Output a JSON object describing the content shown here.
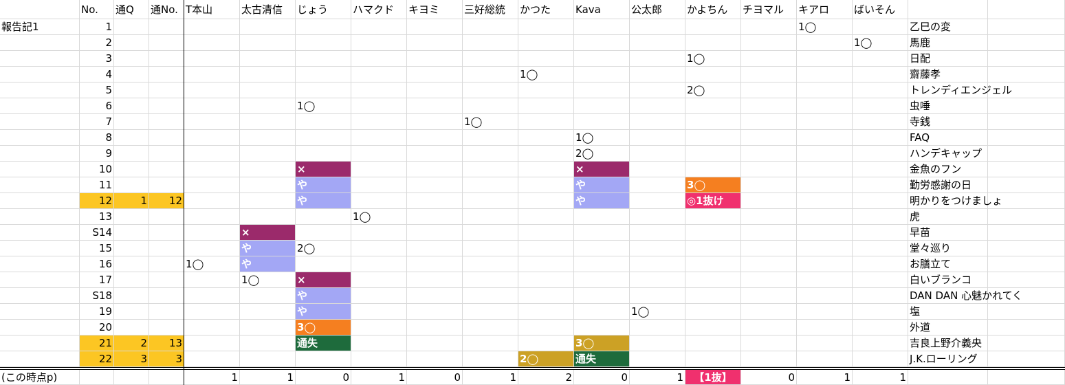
{
  "palette": {
    "x_bg": "#9b2a6b",
    "ya_bg": "#a3a7f5",
    "orange_bg": "#f57f20",
    "pink_bg": "#f0306e",
    "yellow_bg": "#fcc623",
    "gold_bg": "#cca125",
    "green_bg": "#1e6b3c",
    "grid": "#d9d9d9"
  },
  "header": [
    "",
    "No.",
    "通Q",
    "通No.",
    "T本山",
    "太古清信",
    "じょう",
    "ハマクド",
    "キヨミ",
    "三好総統",
    "かつた",
    "Kava",
    "公太郎",
    "かよちん",
    "チヨマル",
    "キアロ",
    "ばいそん",
    "",
    ""
  ],
  "rows": [
    {
      "label": "報告記1",
      "no": "1",
      "q": "",
      "qno": "",
      "hl": false,
      "title": "乙巳の変",
      "marks": [
        {
          "col": 15,
          "text": "1◯"
        }
      ]
    },
    {
      "label": "",
      "no": "2",
      "q": "",
      "qno": "",
      "hl": false,
      "title": "馬鹿",
      "marks": [
        {
          "col": 16,
          "text": "1◯"
        }
      ]
    },
    {
      "label": "",
      "no": "3",
      "q": "",
      "qno": "",
      "hl": false,
      "title": "日配",
      "marks": [
        {
          "col": 13,
          "text": "1◯"
        }
      ]
    },
    {
      "label": "",
      "no": "4",
      "q": "",
      "qno": "",
      "hl": false,
      "title": "齋藤孝",
      "marks": [
        {
          "col": 10,
          "text": "1◯"
        }
      ]
    },
    {
      "label": "",
      "no": "5",
      "q": "",
      "qno": "",
      "hl": false,
      "title": "トレンディエンジェル",
      "marks": [
        {
          "col": 13,
          "text": "2◯"
        }
      ]
    },
    {
      "label": "",
      "no": "6",
      "q": "",
      "qno": "",
      "hl": false,
      "title": "虫唾",
      "marks": [
        {
          "col": 6,
          "text": "1◯"
        }
      ]
    },
    {
      "label": "",
      "no": "7",
      "q": "",
      "qno": "",
      "hl": false,
      "title": "寺銭",
      "marks": [
        {
          "col": 9,
          "text": "1◯"
        }
      ]
    },
    {
      "label": "",
      "no": "8",
      "q": "",
      "qno": "",
      "hl": false,
      "title": "FAQ",
      "marks": [
        {
          "col": 11,
          "text": "1◯"
        }
      ]
    },
    {
      "label": "",
      "no": "9",
      "q": "",
      "qno": "",
      "hl": false,
      "title": "ハンデキャップ",
      "marks": [
        {
          "col": 11,
          "text": "2◯"
        }
      ]
    },
    {
      "label": "",
      "no": "10",
      "q": "",
      "qno": "",
      "hl": false,
      "title": "金魚のフン",
      "marks": [
        {
          "col": 6,
          "text": "×",
          "bg": "x_bg"
        },
        {
          "col": 11,
          "text": "×",
          "bg": "x_bg"
        }
      ]
    },
    {
      "label": "",
      "no": "11",
      "q": "",
      "qno": "",
      "hl": false,
      "title": "勤労感謝の日",
      "marks": [
        {
          "col": 6,
          "text": "や",
          "bg": "ya_bg"
        },
        {
          "col": 11,
          "text": "や",
          "bg": "ya_bg"
        },
        {
          "col": 13,
          "text": "3◯",
          "bg": "orange_bg"
        }
      ]
    },
    {
      "label": "",
      "no": "12",
      "q": "1",
      "qno": "12",
      "hl": true,
      "title": "明かりをつけましょ",
      "marks": [
        {
          "col": 6,
          "text": "や",
          "bg": "ya_bg"
        },
        {
          "col": 11,
          "text": "や",
          "bg": "ya_bg"
        },
        {
          "col": 13,
          "text": "◎1抜け",
          "bg": "pink_bg"
        }
      ]
    },
    {
      "label": "",
      "no": "13",
      "q": "",
      "qno": "",
      "hl": false,
      "title": "虎",
      "marks": [
        {
          "col": 7,
          "text": "1◯"
        }
      ]
    },
    {
      "label": "",
      "no": "S14",
      "q": "",
      "qno": "",
      "hl": false,
      "title": "早苗",
      "marks": [
        {
          "col": 5,
          "text": "×",
          "bg": "x_bg"
        }
      ]
    },
    {
      "label": "",
      "no": "15",
      "q": "",
      "qno": "",
      "hl": false,
      "title": "堂々巡り",
      "marks": [
        {
          "col": 5,
          "text": "や",
          "bg": "ya_bg"
        },
        {
          "col": 6,
          "text": "2◯"
        }
      ]
    },
    {
      "label": "",
      "no": "16",
      "q": "",
      "qno": "",
      "hl": false,
      "title": "お膳立て",
      "marks": [
        {
          "col": 4,
          "text": "1◯"
        },
        {
          "col": 5,
          "text": "や",
          "bg": "ya_bg"
        }
      ]
    },
    {
      "label": "",
      "no": "17",
      "q": "",
      "qno": "",
      "hl": false,
      "title": "白いブランコ",
      "marks": [
        {
          "col": 5,
          "text": "1◯"
        },
        {
          "col": 6,
          "text": "×",
          "bg": "x_bg"
        }
      ]
    },
    {
      "label": "",
      "no": "S18",
      "q": "",
      "qno": "",
      "hl": false,
      "title": "DAN DAN 心魅かれてく",
      "marks": [
        {
          "col": 6,
          "text": "や",
          "bg": "ya_bg"
        }
      ]
    },
    {
      "label": "",
      "no": "19",
      "q": "",
      "qno": "",
      "hl": false,
      "title": "塩",
      "marks": [
        {
          "col": 6,
          "text": "や",
          "bg": "ya_bg"
        },
        {
          "col": 12,
          "text": "1◯"
        }
      ]
    },
    {
      "label": "",
      "no": "20",
      "q": "",
      "qno": "",
      "hl": false,
      "title": "外道",
      "marks": [
        {
          "col": 6,
          "text": "3◯",
          "bg": "orange_bg"
        }
      ]
    },
    {
      "label": "",
      "no": "21",
      "q": "2",
      "qno": "13",
      "hl": true,
      "title": "吉良上野介義央",
      "marks": [
        {
          "col": 6,
          "text": "通失",
          "bg": "green_bg"
        },
        {
          "col": 11,
          "text": "3◯",
          "bg": "gold_bg"
        }
      ]
    },
    {
      "label": "",
      "no": "22",
      "q": "3",
      "qno": "3",
      "hl": true,
      "title": "J.K.ローリング",
      "marks": [
        {
          "col": 10,
          "text": "2◯",
          "bg": "gold_bg"
        },
        {
          "col": 11,
          "text": "通失",
          "bg": "green_bg"
        }
      ]
    }
  ],
  "footer": {
    "label": "(この時点p)",
    "scores": [
      {
        "col": 4,
        "text": "1"
      },
      {
        "col": 5,
        "text": "1"
      },
      {
        "col": 6,
        "text": "0"
      },
      {
        "col": 7,
        "text": "1"
      },
      {
        "col": 8,
        "text": "0"
      },
      {
        "col": 9,
        "text": "1"
      },
      {
        "col": 10,
        "text": "2"
      },
      {
        "col": 11,
        "text": "0"
      },
      {
        "col": 12,
        "text": "1"
      },
      {
        "col": 13,
        "text": "【1抜】",
        "bg": "pink_bg",
        "center": true
      },
      {
        "col": 14,
        "text": "0"
      },
      {
        "col": 15,
        "text": "1"
      },
      {
        "col": 16,
        "text": "1"
      }
    ]
  }
}
